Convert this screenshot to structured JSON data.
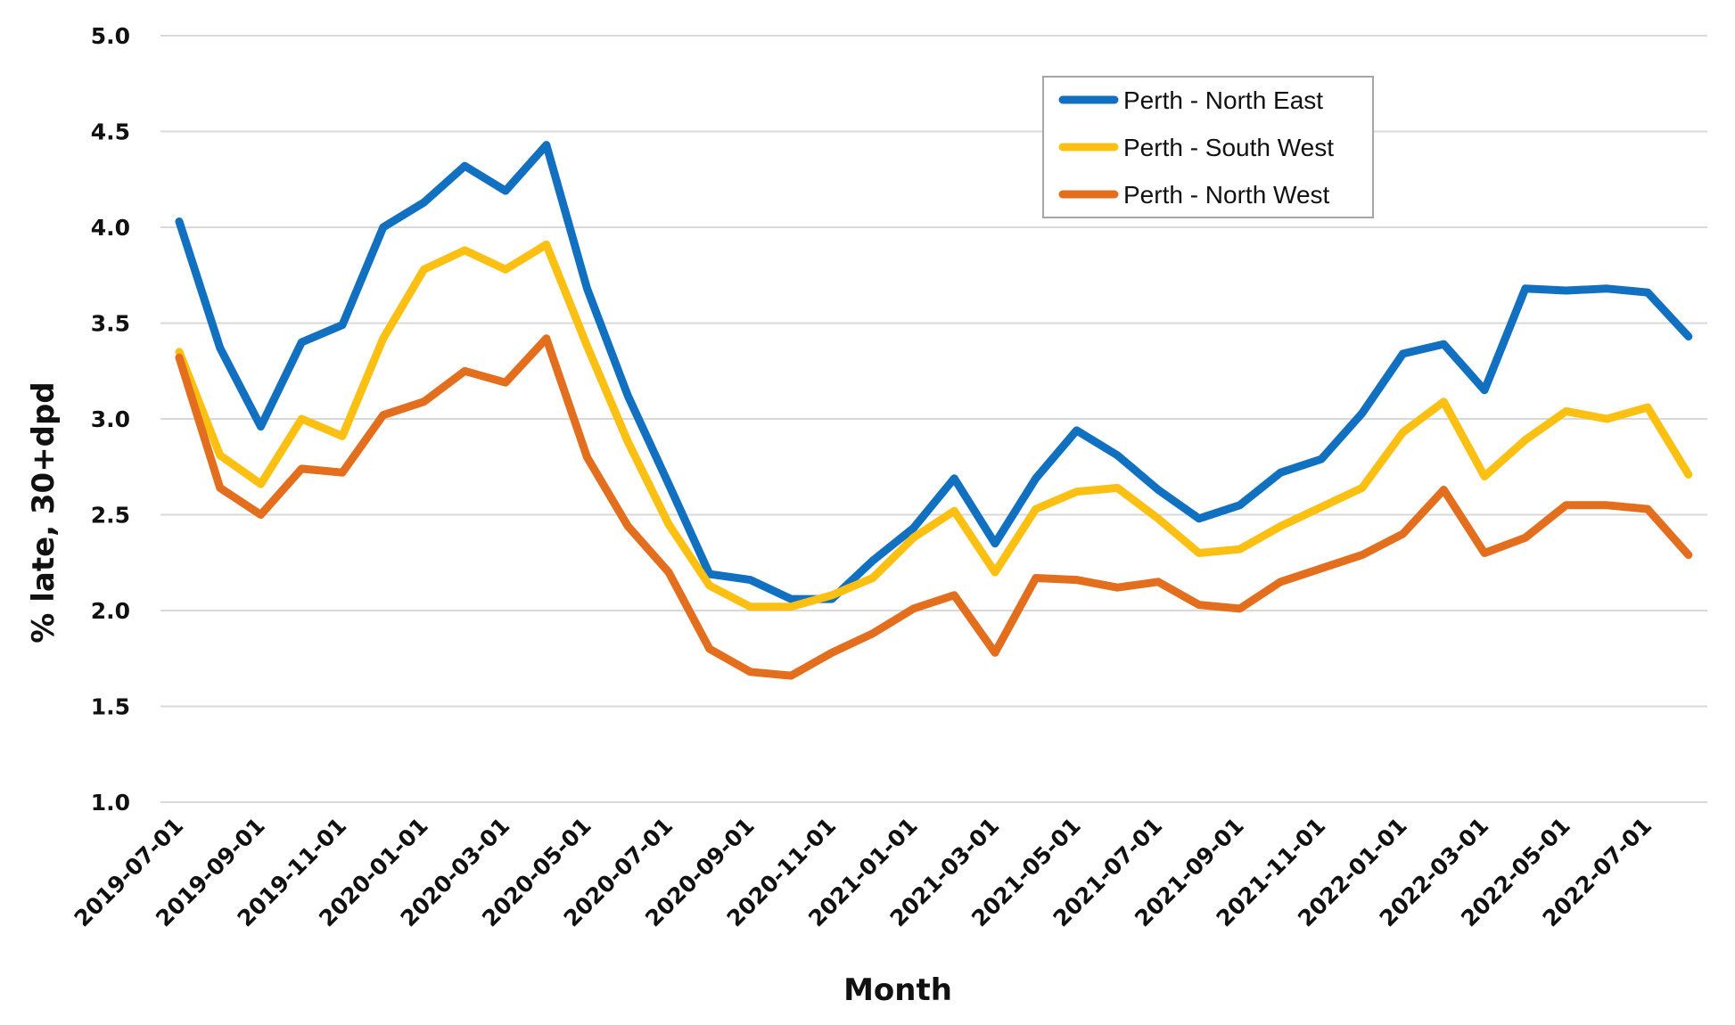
{
  "chart_data": {
    "type": "line",
    "title": "",
    "xlabel": "Month",
    "ylabel": "% late, 30+dpd",
    "ylim": [
      1.0,
      5.0
    ],
    "yticks": [
      "1.0",
      "1.5",
      "2.0",
      "2.5",
      "3.0",
      "3.5",
      "4.0",
      "4.5",
      "5.0"
    ],
    "grid": true,
    "legend_position": "top-center",
    "x": [
      "2019-07-01",
      "2019-08-01",
      "2019-09-01",
      "2019-10-01",
      "2019-11-01",
      "2019-12-01",
      "2020-01-01",
      "2020-02-01",
      "2020-03-01",
      "2020-04-01",
      "2020-05-01",
      "2020-06-01",
      "2020-07-01",
      "2020-08-01",
      "2020-09-01",
      "2020-10-01",
      "2020-11-01",
      "2020-12-01",
      "2021-01-01",
      "2021-02-01",
      "2021-03-01",
      "2021-04-01",
      "2021-05-01",
      "2021-06-01",
      "2021-07-01",
      "2021-08-01",
      "2021-09-01",
      "2021-10-01",
      "2021-11-01",
      "2021-12-01",
      "2022-01-01",
      "2022-02-01",
      "2022-03-01",
      "2022-04-01",
      "2022-05-01",
      "2022-06-01",
      "2022-07-01",
      "2022-08-01"
    ],
    "xtick_labels": [
      "2019-07-01",
      "2019-09-01",
      "2019-11-01",
      "2020-01-01",
      "2020-03-01",
      "2020-05-01",
      "2020-07-01",
      "2020-09-01",
      "2020-11-01",
      "2021-01-01",
      "2021-03-01",
      "2021-05-01",
      "2021-07-01",
      "2021-09-01",
      "2021-11-01",
      "2022-01-01",
      "2022-03-01",
      "2022-05-01",
      "2022-07-01"
    ],
    "series": [
      {
        "name": "Perth - North East",
        "color": "#1170BF",
        "values": [
          4.03,
          3.37,
          2.96,
          3.4,
          3.49,
          4.0,
          4.13,
          4.32,
          4.19,
          4.43,
          3.68,
          3.12,
          2.66,
          2.19,
          2.16,
          2.06,
          2.06,
          2.26,
          2.43,
          2.69,
          2.35,
          2.69,
          2.94,
          2.81,
          2.63,
          2.48,
          2.55,
          2.72,
          2.79,
          3.03,
          3.34,
          3.39,
          3.15,
          3.68,
          3.67,
          3.68,
          3.66,
          3.43
        ]
      },
      {
        "name": "Perth - South West",
        "color": "#FBC012",
        "values": [
          3.35,
          2.81,
          2.66,
          3.0,
          2.91,
          3.42,
          3.78,
          3.88,
          3.78,
          3.91,
          3.38,
          2.88,
          2.45,
          2.13,
          2.02,
          2.02,
          2.08,
          2.17,
          2.38,
          2.52,
          2.2,
          2.53,
          2.62,
          2.64,
          2.48,
          2.3,
          2.32,
          2.44,
          2.54,
          2.64,
          2.93,
          3.09,
          2.7,
          2.89,
          3.04,
          3.0,
          3.06,
          2.71
        ]
      },
      {
        "name": "Perth - North West",
        "color": "#E36E1E",
        "values": [
          3.32,
          2.64,
          2.5,
          2.74,
          2.72,
          3.02,
          3.09,
          3.25,
          3.19,
          3.42,
          2.8,
          2.44,
          2.2,
          1.8,
          1.68,
          1.66,
          1.78,
          1.88,
          2.01,
          2.08,
          1.78,
          2.17,
          2.16,
          2.12,
          2.15,
          2.03,
          2.01,
          2.15,
          2.22,
          2.29,
          2.4,
          2.63,
          2.3,
          2.38,
          2.55,
          2.55,
          2.53,
          2.29
        ]
      }
    ]
  }
}
